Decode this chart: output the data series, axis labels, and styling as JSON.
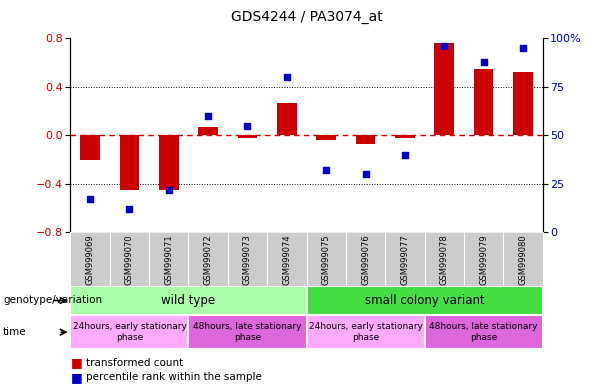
{
  "title": "GDS4244 / PA3074_at",
  "samples": [
    "GSM999069",
    "GSM999070",
    "GSM999071",
    "GSM999072",
    "GSM999073",
    "GSM999074",
    "GSM999075",
    "GSM999076",
    "GSM999077",
    "GSM999078",
    "GSM999079",
    "GSM999080"
  ],
  "bar_values": [
    -0.2,
    -0.45,
    -0.45,
    0.07,
    -0.02,
    0.27,
    -0.04,
    -0.07,
    -0.02,
    0.76,
    0.55,
    0.52
  ],
  "dot_values": [
    17,
    12,
    22,
    60,
    55,
    80,
    32,
    30,
    40,
    96,
    88,
    95
  ],
  "bar_color": "#cc0000",
  "dot_color": "#0000cc",
  "ylim_left": [
    -0.8,
    0.8
  ],
  "ylim_right": [
    0,
    100
  ],
  "yticks_left": [
    -0.8,
    -0.4,
    0.0,
    0.4,
    0.8
  ],
  "yticks_right": [
    0,
    25,
    50,
    75,
    100
  ],
  "ytick_labels_right": [
    "0",
    "25",
    "50",
    "75",
    "100%"
  ],
  "hline_color": "#cc0000",
  "dotted_lines": [
    -0.4,
    0.4
  ],
  "genotype_label": "genotype/variation",
  "time_label": "time",
  "genotype_groups": [
    {
      "label": "wild type",
      "start": 0,
      "end": 6,
      "color": "#aaffaa"
    },
    {
      "label": "small colony variant",
      "start": 6,
      "end": 12,
      "color": "#44dd44"
    }
  ],
  "time_groups": [
    {
      "label": "24hours, early stationary\nphase",
      "start": 0,
      "end": 3,
      "color": "#ffaaff"
    },
    {
      "label": "48hours, late stationary\nphase",
      "start": 3,
      "end": 6,
      "color": "#dd66dd"
    },
    {
      "label": "24hours, early stationary\nphase",
      "start": 6,
      "end": 9,
      "color": "#ffaaff"
    },
    {
      "label": "48hours, late stationary\nphase",
      "start": 9,
      "end": 12,
      "color": "#dd66dd"
    }
  ],
  "legend_bar_label": "transformed count",
  "legend_dot_label": "percentile rank within the sample",
  "bg_color": "#ffffff",
  "tick_area_color": "#cccccc",
  "bar_width": 0.5
}
